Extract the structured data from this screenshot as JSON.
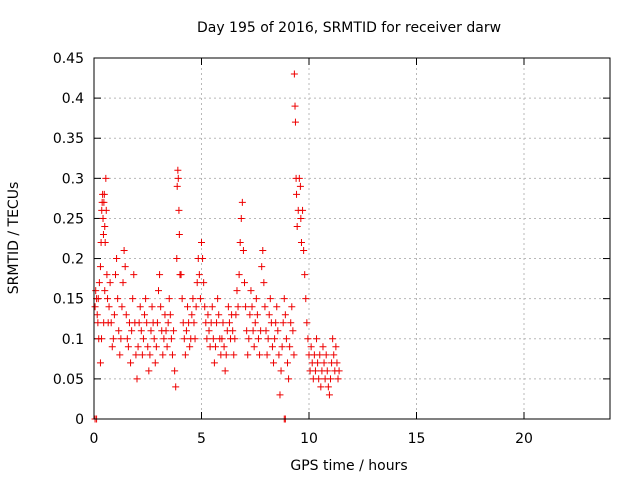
{
  "chart_data": {
    "type": "scatter",
    "title": "Day 195 of 2016, SRMTID for receiver darw",
    "xlabel": "GPS time / hours",
    "ylabel": "SRMTID / TECUs",
    "xlim": [
      0,
      24
    ],
    "ylim": [
      0,
      0.45
    ],
    "xticks": [
      0,
      5,
      10,
      15,
      20
    ],
    "yticks": [
      0,
      0.05,
      0.1,
      0.15,
      0.2,
      0.25,
      0.3,
      0.35,
      0.4,
      0.45
    ],
    "xtick_labels": [
      "0",
      "5",
      "10",
      "15",
      "20"
    ],
    "ytick_labels": [
      "0",
      "0.05",
      "0.1",
      "0.15",
      "0.2",
      "0.25",
      "0.3",
      "0.35",
      "0.4",
      "0.45"
    ],
    "grid": true,
    "marker": "+",
    "marker_color": "#ee0000",
    "points": [
      [
        0.05,
        0.0
      ],
      [
        0.12,
        0.0
      ],
      [
        8.85,
        0.0
      ],
      [
        8.9,
        0.0
      ],
      [
        0.05,
        0.14
      ],
      [
        0.08,
        0.16
      ],
      [
        0.12,
        0.15
      ],
      [
        0.15,
        0.13
      ],
      [
        0.18,
        0.12
      ],
      [
        0.2,
        0.15
      ],
      [
        0.22,
        0.1
      ],
      [
        0.25,
        0.17
      ],
      [
        0.3,
        0.19
      ],
      [
        0.33,
        0.22
      ],
      [
        0.36,
        0.26
      ],
      [
        0.38,
        0.27
      ],
      [
        0.4,
        0.28
      ],
      [
        0.42,
        0.25
      ],
      [
        0.44,
        0.23
      ],
      [
        0.46,
        0.27
      ],
      [
        0.48,
        0.28
      ],
      [
        0.5,
        0.24
      ],
      [
        0.52,
        0.22
      ],
      [
        0.55,
        0.3
      ],
      [
        0.57,
        0.26
      ],
      [
        0.6,
        0.18
      ],
      [
        0.63,
        0.15
      ],
      [
        0.66,
        0.12
      ],
      [
        0.3,
        0.07
      ],
      [
        0.35,
        0.1
      ],
      [
        0.45,
        0.12
      ],
      [
        0.5,
        0.16
      ],
      [
        0.7,
        0.14
      ],
      [
        0.75,
        0.17
      ],
      [
        0.8,
        0.12
      ],
      [
        0.85,
        0.09
      ],
      [
        0.9,
        0.1
      ],
      [
        0.95,
        0.13
      ],
      [
        1.0,
        0.18
      ],
      [
        1.05,
        0.2
      ],
      [
        1.1,
        0.15
      ],
      [
        1.15,
        0.11
      ],
      [
        1.2,
        0.08
      ],
      [
        1.25,
        0.1
      ],
      [
        1.3,
        0.14
      ],
      [
        1.35,
        0.17
      ],
      [
        1.4,
        0.21
      ],
      [
        1.45,
        0.19
      ],
      [
        1.5,
        0.13
      ],
      [
        1.55,
        0.1
      ],
      [
        1.6,
        0.09
      ],
      [
        1.65,
        0.12
      ],
      [
        1.7,
        0.07
      ],
      [
        1.75,
        0.11
      ],
      [
        1.8,
        0.15
      ],
      [
        1.85,
        0.18
      ],
      [
        1.9,
        0.12
      ],
      [
        1.95,
        0.08
      ],
      [
        2.0,
        0.05
      ],
      [
        2.05,
        0.09
      ],
      [
        2.1,
        0.12
      ],
      [
        2.15,
        0.14
      ],
      [
        2.2,
        0.11
      ],
      [
        2.25,
        0.08
      ],
      [
        2.3,
        0.1
      ],
      [
        2.35,
        0.13
      ],
      [
        2.4,
        0.15
      ],
      [
        2.45,
        0.12
      ],
      [
        2.5,
        0.09
      ],
      [
        2.55,
        0.06
      ],
      [
        2.6,
        0.08
      ],
      [
        2.65,
        0.11
      ],
      [
        2.7,
        0.14
      ],
      [
        2.75,
        0.12
      ],
      [
        2.8,
        0.1
      ],
      [
        2.85,
        0.07
      ],
      [
        2.9,
        0.09
      ],
      [
        2.95,
        0.12
      ],
      [
        3.0,
        0.16
      ],
      [
        3.05,
        0.18
      ],
      [
        3.1,
        0.14
      ],
      [
        3.15,
        0.11
      ],
      [
        3.2,
        0.08
      ],
      [
        3.25,
        0.1
      ],
      [
        3.3,
        0.13
      ],
      [
        3.35,
        0.11
      ],
      [
        3.4,
        0.09
      ],
      [
        3.45,
        0.12
      ],
      [
        3.5,
        0.15
      ],
      [
        3.55,
        0.13
      ],
      [
        3.6,
        0.1
      ],
      [
        3.65,
        0.08
      ],
      [
        3.7,
        0.11
      ],
      [
        3.75,
        0.06
      ],
      [
        3.8,
        0.04
      ],
      [
        3.85,
        0.2
      ],
      [
        3.87,
        0.29
      ],
      [
        3.9,
        0.31
      ],
      [
        3.92,
        0.3
      ],
      [
        3.95,
        0.26
      ],
      [
        3.97,
        0.23
      ],
      [
        4.0,
        0.18
      ],
      [
        4.05,
        0.18
      ],
      [
        4.1,
        0.15
      ],
      [
        4.15,
        0.12
      ],
      [
        4.2,
        0.1
      ],
      [
        4.25,
        0.08
      ],
      [
        4.3,
        0.11
      ],
      [
        4.35,
        0.14
      ],
      [
        4.4,
        0.12
      ],
      [
        4.45,
        0.09
      ],
      [
        4.5,
        0.1
      ],
      [
        4.55,
        0.13
      ],
      [
        4.6,
        0.15
      ],
      [
        4.65,
        0.12
      ],
      [
        4.7,
        0.1
      ],
      [
        4.75,
        0.14
      ],
      [
        4.8,
        0.17
      ],
      [
        4.85,
        0.2
      ],
      [
        4.9,
        0.18
      ],
      [
        4.95,
        0.15
      ],
      [
        5.0,
        0.22
      ],
      [
        5.05,
        0.2
      ],
      [
        5.1,
        0.17
      ],
      [
        5.15,
        0.14
      ],
      [
        5.2,
        0.12
      ],
      [
        5.25,
        0.1
      ],
      [
        5.3,
        0.13
      ],
      [
        5.35,
        0.11
      ],
      [
        5.4,
        0.09
      ],
      [
        5.45,
        0.12
      ],
      [
        5.5,
        0.14
      ],
      [
        5.55,
        0.1
      ],
      [
        5.6,
        0.07
      ],
      [
        5.65,
        0.09
      ],
      [
        5.7,
        0.12
      ],
      [
        5.75,
        0.15
      ],
      [
        5.8,
        0.13
      ],
      [
        5.85,
        0.1
      ],
      [
        5.9,
        0.08
      ],
      [
        5.95,
        0.1
      ],
      [
        6.0,
        0.12
      ],
      [
        6.05,
        0.09
      ],
      [
        6.1,
        0.06
      ],
      [
        6.15,
        0.08
      ],
      [
        6.2,
        0.11
      ],
      [
        6.25,
        0.14
      ],
      [
        6.3,
        0.12
      ],
      [
        6.35,
        0.1
      ],
      [
        6.4,
        0.13
      ],
      [
        6.45,
        0.11
      ],
      [
        6.5,
        0.08
      ],
      [
        6.55,
        0.1
      ],
      [
        6.6,
        0.13
      ],
      [
        6.65,
        0.16
      ],
      [
        6.7,
        0.14
      ],
      [
        6.75,
        0.18
      ],
      [
        6.8,
        0.22
      ],
      [
        6.85,
        0.25
      ],
      [
        6.9,
        0.27
      ],
      [
        6.95,
        0.21
      ],
      [
        7.0,
        0.17
      ],
      [
        7.05,
        0.14
      ],
      [
        7.1,
        0.11
      ],
      [
        7.15,
        0.08
      ],
      [
        7.2,
        0.1
      ],
      [
        7.25,
        0.13
      ],
      [
        7.3,
        0.16
      ],
      [
        7.35,
        0.14
      ],
      [
        7.4,
        0.11
      ],
      [
        7.45,
        0.09
      ],
      [
        7.5,
        0.12
      ],
      [
        7.55,
        0.15
      ],
      [
        7.6,
        0.13
      ],
      [
        7.65,
        0.1
      ],
      [
        7.7,
        0.08
      ],
      [
        7.75,
        0.11
      ],
      [
        7.8,
        0.19
      ],
      [
        7.85,
        0.21
      ],
      [
        7.9,
        0.17
      ],
      [
        7.95,
        0.14
      ],
      [
        8.0,
        0.11
      ],
      [
        8.05,
        0.08
      ],
      [
        8.1,
        0.1
      ],
      [
        8.15,
        0.13
      ],
      [
        8.2,
        0.15
      ],
      [
        8.25,
        0.12
      ],
      [
        8.3,
        0.09
      ],
      [
        8.35,
        0.07
      ],
      [
        8.4,
        0.1
      ],
      [
        8.45,
        0.12
      ],
      [
        8.5,
        0.14
      ],
      [
        8.55,
        0.11
      ],
      [
        8.6,
        0.08
      ],
      [
        8.65,
        0.03
      ],
      [
        8.7,
        0.06
      ],
      [
        8.75,
        0.09
      ],
      [
        8.8,
        0.12
      ],
      [
        8.85,
        0.15
      ],
      [
        8.9,
        0.13
      ],
      [
        8.95,
        0.1
      ],
      [
        9.0,
        0.07
      ],
      [
        9.05,
        0.05
      ],
      [
        9.1,
        0.09
      ],
      [
        9.15,
        0.12
      ],
      [
        9.2,
        0.14
      ],
      [
        9.25,
        0.11
      ],
      [
        9.3,
        0.08
      ],
      [
        9.32,
        0.43
      ],
      [
        9.35,
        0.39
      ],
      [
        9.37,
        0.37
      ],
      [
        9.4,
        0.3
      ],
      [
        9.42,
        0.28
      ],
      [
        9.45,
        0.24
      ],
      [
        9.5,
        0.26
      ],
      [
        9.55,
        0.3
      ],
      [
        9.6,
        0.29
      ],
      [
        9.62,
        0.25
      ],
      [
        9.65,
        0.22
      ],
      [
        9.7,
        0.26
      ],
      [
        9.75,
        0.21
      ],
      [
        9.8,
        0.18
      ],
      [
        9.85,
        0.15
      ],
      [
        9.9,
        0.12
      ],
      [
        9.95,
        0.1
      ],
      [
        10.0,
        0.08
      ],
      [
        10.05,
        0.06
      ],
      [
        10.1,
        0.09
      ],
      [
        10.15,
        0.07
      ],
      [
        10.2,
        0.05
      ],
      [
        10.25,
        0.08
      ],
      [
        10.3,
        0.06
      ],
      [
        10.35,
        0.1
      ],
      [
        10.4,
        0.07
      ],
      [
        10.45,
        0.05
      ],
      [
        10.5,
        0.08
      ],
      [
        10.55,
        0.04
      ],
      [
        10.6,
        0.06
      ],
      [
        10.65,
        0.09
      ],
      [
        10.7,
        0.07
      ],
      [
        10.75,
        0.05
      ],
      [
        10.8,
        0.08
      ],
      [
        10.85,
        0.06
      ],
      [
        10.9,
        0.04
      ],
      [
        10.95,
        0.03
      ],
      [
        11.0,
        0.05
      ],
      [
        11.05,
        0.07
      ],
      [
        11.1,
        0.1
      ],
      [
        11.15,
        0.08
      ],
      [
        11.2,
        0.06
      ],
      [
        11.25,
        0.09
      ],
      [
        11.3,
        0.07
      ],
      [
        11.35,
        0.05
      ],
      [
        11.4,
        0.06
      ]
    ]
  }
}
